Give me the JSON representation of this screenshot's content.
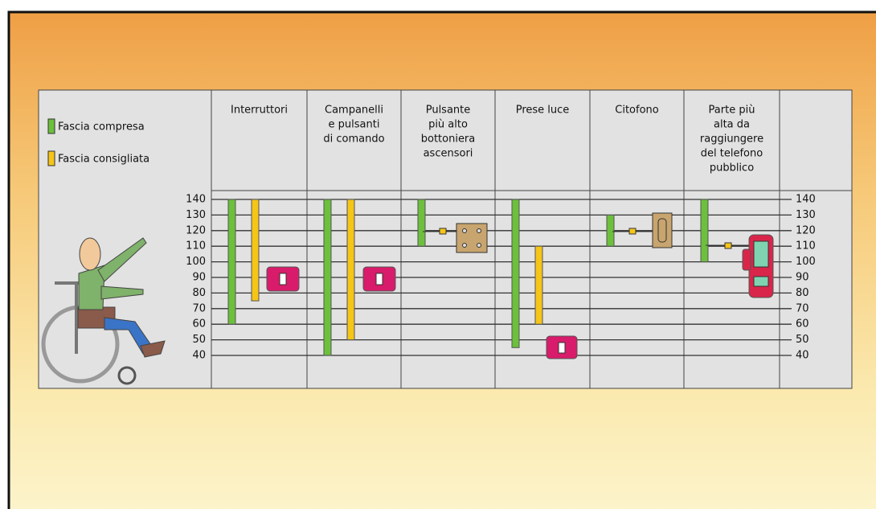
{
  "chart_data": {
    "type": "range",
    "categories": [
      [
        "Interruttori"
      ],
      [
        "Campanelli",
        "e pulsanti",
        "di comando"
      ],
      [
        "Pulsante",
        "più alto",
        "bottoniera",
        "ascensori"
      ],
      [
        "Prese luce"
      ],
      [
        "Citofono"
      ],
      [
        "Parte più",
        "alta da",
        "raggiungere",
        "del telefono",
        "pubblico"
      ]
    ],
    "series": [
      {
        "name": "Fascia compresa",
        "color": "#6cc03c",
        "values": [
          [
            60,
            140
          ],
          [
            40,
            140
          ],
          [
            110,
            140
          ],
          [
            45,
            140
          ],
          [
            110,
            130
          ],
          [
            100,
            140
          ]
        ]
      },
      {
        "name": "Fascia consigliata",
        "color": "#f5c518",
        "values": [
          [
            75,
            140
          ],
          [
            50,
            140
          ],
          null,
          [
            60,
            110
          ],
          null,
          null
        ]
      }
    ],
    "ylim": [
      40,
      140
    ],
    "yticks": [
      140,
      130,
      120,
      110,
      100,
      90,
      80,
      70,
      60,
      50,
      40
    ],
    "grid": true
  }
}
